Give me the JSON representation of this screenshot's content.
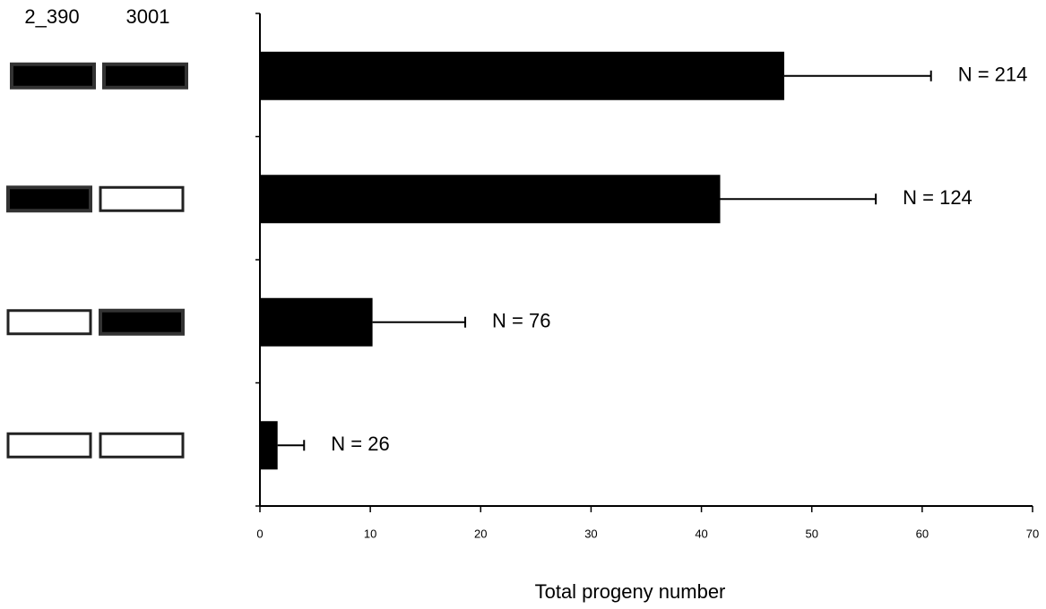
{
  "chart_data": {
    "type": "bar",
    "orientation": "horizontal",
    "column_headers": [
      "2_390",
      "3001"
    ],
    "genotypes": [
      [
        true,
        true
      ],
      [
        true,
        false
      ],
      [
        false,
        true
      ],
      [
        false,
        false
      ]
    ],
    "values": [
      47.5,
      41.7,
      10.2,
      1.6
    ],
    "errors": [
      13.3,
      14.1,
      8.4,
      2.4
    ],
    "value_annotations": [
      "N = 214",
      "N = 124",
      "N = 76",
      "N = 26"
    ],
    "color": "#000000",
    "xlabel": "Total progeny number",
    "xlim": [
      0,
      70
    ],
    "xticks": [
      0,
      10,
      20,
      30,
      40,
      50,
      60,
      70
    ]
  }
}
